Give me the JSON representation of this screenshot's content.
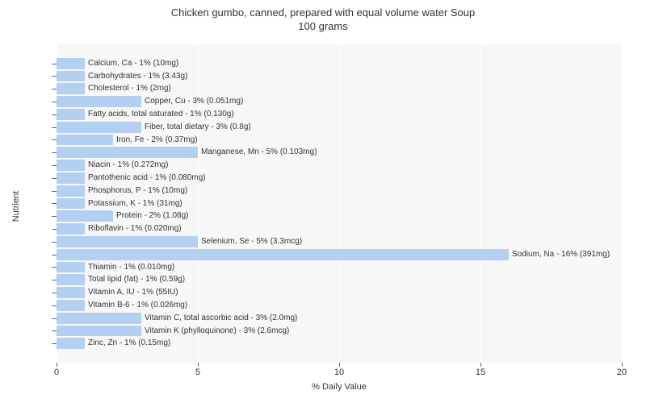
{
  "chart": {
    "type": "bar-horizontal",
    "title_line1": "Chicken gumbo, canned, prepared with equal volume water Soup",
    "title_line2": "100 grams",
    "title_fontsize": 13,
    "xlabel": "% Daily Value",
    "ylabel": "Nutrient",
    "label_fontsize": 11,
    "xlim": [
      0,
      20
    ],
    "xticks": [
      0,
      5,
      10,
      15,
      20
    ],
    "background_color": "#ffffff",
    "plot_background": "#f7f7f7",
    "grid_color": "#ffffff",
    "bar_color": "#b3cff2",
    "bar_label_fontsize": 10,
    "bars": [
      {
        "label": "Calcium, Ca - 1% (10mg)",
        "value": 1
      },
      {
        "label": "Carbohydrates - 1% (3.43g)",
        "value": 1
      },
      {
        "label": "Cholesterol - 1% (2mg)",
        "value": 1
      },
      {
        "label": "Copper, Cu - 3% (0.051mg)",
        "value": 3
      },
      {
        "label": "Fatty acids, total saturated - 1% (0.130g)",
        "value": 1
      },
      {
        "label": "Fiber, total dietary - 3% (0.8g)",
        "value": 3
      },
      {
        "label": "Iron, Fe - 2% (0.37mg)",
        "value": 2
      },
      {
        "label": "Manganese, Mn - 5% (0.103mg)",
        "value": 5
      },
      {
        "label": "Niacin - 1% (0.272mg)",
        "value": 1
      },
      {
        "label": "Pantothenic acid - 1% (0.080mg)",
        "value": 1
      },
      {
        "label": "Phosphorus, P - 1% (10mg)",
        "value": 1
      },
      {
        "label": "Potassium, K - 1% (31mg)",
        "value": 1
      },
      {
        "label": "Protein - 2% (1.08g)",
        "value": 2
      },
      {
        "label": "Riboflavin - 1% (0.020mg)",
        "value": 1
      },
      {
        "label": "Selenium, Se - 5% (3.3mcg)",
        "value": 5
      },
      {
        "label": "Sodium, Na - 16% (391mg)",
        "value": 16
      },
      {
        "label": "Thiamin - 1% (0.010mg)",
        "value": 1
      },
      {
        "label": "Total lipid (fat) - 1% (0.59g)",
        "value": 1
      },
      {
        "label": "Vitamin A, IU - 1% (55IU)",
        "value": 1
      },
      {
        "label": "Vitamin B-6 - 1% (0.026mg)",
        "value": 1
      },
      {
        "label": "Vitamin C, total ascorbic acid - 3% (2.0mg)",
        "value": 3
      },
      {
        "label": "Vitamin K (phylloquinone) - 3% (2.6mcg)",
        "value": 3
      },
      {
        "label": "Zinc, Zn - 1% (0.15mg)",
        "value": 1
      }
    ]
  }
}
